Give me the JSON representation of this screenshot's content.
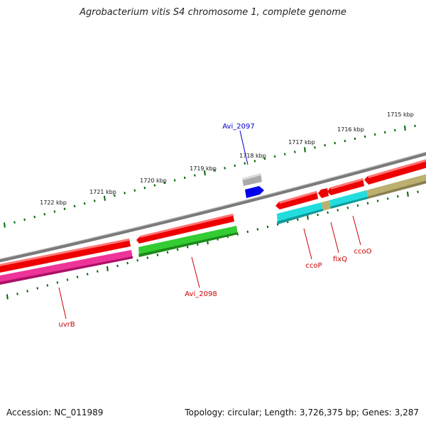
{
  "title": "Agrobacterium vitis S4 chromosome 1, complete genome",
  "footer": {
    "accession": "Accession: NC_011989",
    "topology": "Topology: circular; Length: 3,726,375 bp; Genes: 3,287"
  },
  "scale": {
    "labels": [
      "1715 kbp",
      "1716 kbp",
      "1717 kbp",
      "1718 kbp",
      "1719 kbp",
      "1720 kbp",
      "1721 kbp",
      "1722 kbp"
    ]
  },
  "genes": [
    {
      "name": "Avi_2097",
      "color": "#0000cc"
    },
    {
      "name": "Avi_2098",
      "color": "#cc0000"
    },
    {
      "name": "uvrB",
      "color": "#cc0000"
    },
    {
      "name": "ccoP",
      "color": "#cc0000"
    },
    {
      "name": "fixQ",
      "color": "#cc0000"
    },
    {
      "name": "ccoO",
      "color": "#cc0000"
    }
  ],
  "colors": {
    "backbone": "#888888",
    "cds": "#ee0000",
    "green_feature": "#33cc33",
    "magenta_feature": "#ee3399",
    "cyan_feature": "#22dddd",
    "khaki_feature": "#bbb070",
    "gray_feature": "#aaaaaa",
    "blue_feature": "#0000ee",
    "tick": "#006600"
  }
}
